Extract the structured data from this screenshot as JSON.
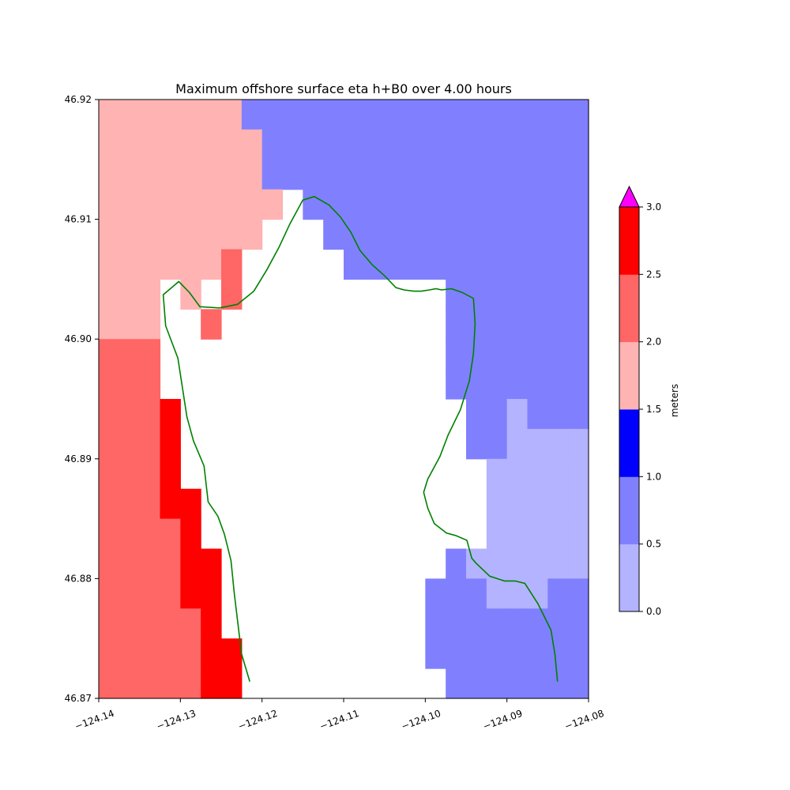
{
  "chart_data": {
    "type": "heatmap",
    "title": "Maximum offshore surface eta h+B0 over 4.00 hours",
    "xlim": [
      -124.14,
      -124.08
    ],
    "ylim": [
      46.87,
      46.92
    ],
    "xticks": [
      -124.14,
      -124.13,
      -124.12,
      -124.11,
      -124.1,
      -124.09,
      -124.08
    ],
    "yticks": [
      46.87,
      46.88,
      46.89,
      46.9,
      46.91,
      46.92
    ],
    "x_tick_labels": [
      "−124.14",
      "−124.13",
      "−124.12",
      "−124.11",
      "−124.10",
      "−124.09",
      "−124.08"
    ],
    "y_tick_labels": [
      "46.87",
      "46.88",
      "46.89",
      "46.90",
      "46.91",
      "46.92"
    ],
    "grid": false,
    "grid_cols": 24,
    "grid_rows": 20,
    "level_colors": [
      "#b3b3ff",
      "#8080ff",
      "#0000ff",
      "#ffb3b3",
      "#ff6666",
      "#ff0000"
    ],
    "grid_levels": [
      "DDDDDDDBBBBBBBBBBBBBBBBB",
      "DDDDDDDDBBBBBBBBBBBBBBBB",
      "DDDDDDDDBBBBBBBBBBBBBBBB",
      "DDDDDDDDD.BBBBBBBBBBBBBB",
      "DDDDDDDD...BBBBBBBBBBBBB",
      "DDDDDDE.....BBBBBBBBBBBB",
      "DDD.D.E..........BBBBBBB",
      "DDD..E...........BBBBBBB",
      "EEE..............BBBBBBB",
      "EEE..............BBBBBBB",
      "EEEF..............BBABBB",
      "EEEF..............BBAAAA",
      "EEEF...............AAAAA",
      "EEEFF..............AAAAA",
      "EEEEF..............AAAAA",
      "EEEEFF...........BAAAAAA",
      "EEEEFF..........BBBAAABB",
      "EEEEEF..........BBBBBBBB",
      "EEEEEFF.........BBBBBBBB",
      "EEEEEFF..........BBBBBBB"
    ],
    "coastlines": [
      {
        "color": "#008000",
        "points": [
          [
            -124.1215,
            46.8714
          ],
          [
            -124.1225,
            46.8737
          ],
          [
            -124.1234,
            46.8788
          ],
          [
            -124.1238,
            46.8815
          ],
          [
            -124.1246,
            46.8837
          ],
          [
            -124.1254,
            46.8852
          ],
          [
            -124.1266,
            46.8864
          ],
          [
            -124.1271,
            46.8894
          ],
          [
            -124.1284,
            46.8915
          ],
          [
            -124.1292,
            46.8935
          ],
          [
            -124.1303,
            46.8984
          ],
          [
            -124.1318,
            46.9011
          ],
          [
            -124.1321,
            46.9037
          ],
          [
            -124.1302,
            46.9048
          ],
          [
            -124.1289,
            46.9039
          ],
          [
            -124.1276,
            46.9027
          ],
          [
            -124.1252,
            46.9026
          ],
          [
            -124.123,
            46.9029
          ],
          [
            -124.121,
            46.904
          ],
          [
            -124.1194,
            46.9058
          ],
          [
            -124.1179,
            46.9077
          ],
          [
            -124.1166,
            46.9096
          ],
          [
            -124.115,
            46.9116
          ],
          [
            -124.1136,
            46.9119
          ],
          [
            -124.1118,
            46.9112
          ],
          [
            -124.1104,
            46.9102
          ],
          [
            -124.1091,
            46.9089
          ],
          [
            -124.108,
            46.9074
          ],
          [
            -124.1065,
            46.9062
          ],
          [
            -124.105,
            46.9053
          ],
          [
            -124.1036,
            46.9043
          ],
          [
            -124.1026,
            46.9041
          ],
          [
            -124.1014,
            46.904
          ],
          [
            -124.1005,
            46.904
          ],
          [
            -124.0995,
            46.9041
          ],
          [
            -124.0987,
            46.9042
          ],
          [
            -124.098,
            46.9041
          ],
          [
            -124.0968,
            46.9042
          ],
          [
            -124.0955,
            46.9039
          ],
          [
            -124.0941,
            46.9034
          ],
          [
            -124.0939,
            46.9013
          ],
          [
            -124.0941,
            46.8988
          ],
          [
            -124.0946,
            46.8965
          ],
          [
            -124.0957,
            46.8941
          ],
          [
            -124.0972,
            46.892
          ],
          [
            -124.0982,
            46.8902
          ],
          [
            -124.0997,
            46.8883
          ],
          [
            -124.1002,
            46.8872
          ],
          [
            -124.0997,
            46.8859
          ],
          [
            -124.0989,
            46.8846
          ],
          [
            -124.0974,
            46.8838
          ],
          [
            -124.0963,
            46.8836
          ],
          [
            -124.0949,
            46.8832
          ],
          [
            -124.0943,
            46.8817
          ],
          [
            -124.0938,
            46.8813
          ],
          [
            -124.0921,
            46.8802
          ],
          [
            -124.0903,
            46.8798
          ],
          [
            -124.089,
            46.8798
          ],
          [
            -124.0878,
            46.8796
          ],
          [
            -124.0862,
            46.8779
          ],
          [
            -124.0846,
            46.8757
          ],
          [
            -124.0841,
            46.8736
          ],
          [
            -124.0838,
            46.8714
          ]
        ]
      }
    ],
    "colorbar": {
      "label": "meters",
      "tick_labels": [
        "0.0",
        "0.5",
        "1.0",
        "1.5",
        "2.0",
        "2.5",
        "3.0"
      ],
      "boundaries": [
        0.0,
        0.5,
        1.0,
        1.5,
        2.0,
        2.5,
        3.0
      ],
      "colors": [
        "#b3b3ff",
        "#8080ff",
        "#0000ff",
        "#ffb3b3",
        "#ff6666",
        "#ff0000"
      ],
      "extend_max_color": "#ff00ff"
    }
  }
}
